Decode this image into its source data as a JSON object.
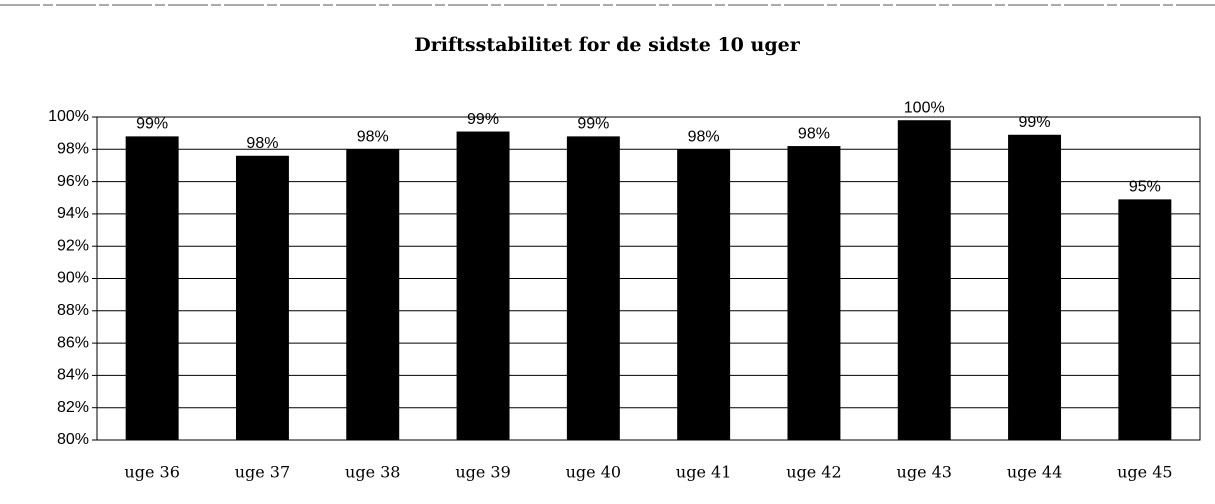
{
  "chart_data": {
    "type": "bar",
    "title": "Driftsstabilitet for de sidste 10 uger",
    "categories": [
      "uge 36",
      "uge 37",
      "uge 38",
      "uge 39",
      "uge 40",
      "uge 41",
      "uge 42",
      "uge 43",
      "uge 44",
      "uge 45"
    ],
    "values": [
      98.8,
      97.6,
      98.0,
      99.1,
      98.8,
      98.0,
      98.2,
      99.8,
      98.9,
      94.9
    ],
    "value_labels": [
      "99%",
      "98%",
      "98%",
      "99%",
      "99%",
      "98%",
      "98%",
      "100%",
      "99%",
      "95%"
    ],
    "color": "#000000",
    "ylim": [
      80,
      100
    ],
    "yticks": [
      {
        "value": 80,
        "label": "80%"
      },
      {
        "value": 82,
        "label": "82%"
      },
      {
        "value": 84,
        "label": "84%"
      },
      {
        "value": 86,
        "label": "86%"
      },
      {
        "value": 88,
        "label": "88%"
      },
      {
        "value": 90,
        "label": "90%"
      },
      {
        "value": 92,
        "label": "92%"
      },
      {
        "value": 94,
        "label": "94%"
      },
      {
        "value": 96,
        "label": "96%"
      },
      {
        "value": 98,
        "label": "98%"
      },
      {
        "value": 100,
        "label": "100%"
      }
    ],
    "grid": true
  }
}
